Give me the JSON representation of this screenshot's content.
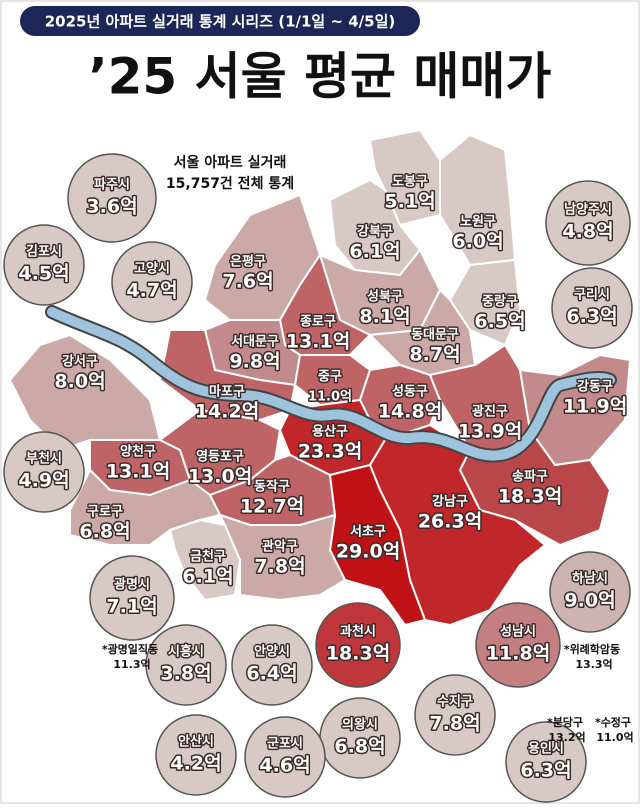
{
  "header": {
    "series": "2025년 아파트 실거래 통계 시리즈 (1/1일 ~ 4/5일)",
    "title": "’25 서울 평균 매매가",
    "subtitle_lines": [
      "서울 아파트 실거래",
      "15,757건 전체 통계"
    ]
  },
  "seoul_districts": [
    {
      "name": "도봉구",
      "price": "5.1억"
    },
    {
      "name": "노원구",
      "price": "6.0억"
    },
    {
      "name": "강북구",
      "price": "6.1억"
    },
    {
      "name": "은평구",
      "price": "7.6억"
    },
    {
      "name": "성북구",
      "price": "8.1억"
    },
    {
      "name": "중랑구",
      "price": "6.5억"
    },
    {
      "name": "종로구",
      "price": "13.1억"
    },
    {
      "name": "서대문구",
      "price": "9.8억"
    },
    {
      "name": "동대문구",
      "price": "8.7억"
    },
    {
      "name": "강서구",
      "price": "8.0억"
    },
    {
      "name": "마포구",
      "price": "14.2억"
    },
    {
      "name": "중구",
      "price": "11.0억"
    },
    {
      "name": "성동구",
      "price": "14.8억"
    },
    {
      "name": "광진구",
      "price": "13.9억"
    },
    {
      "name": "강동구",
      "price": "11.9억"
    },
    {
      "name": "용산구",
      "price": "23.3억"
    },
    {
      "name": "양천구",
      "price": "13.1억"
    },
    {
      "name": "영등포구",
      "price": "13.0억"
    },
    {
      "name": "동작구",
      "price": "12.7억"
    },
    {
      "name": "송파구",
      "price": "18.3억"
    },
    {
      "name": "강남구",
      "price": "26.3억"
    },
    {
      "name": "서초구",
      "price": "29.0억"
    },
    {
      "name": "구로구",
      "price": "6.8억"
    },
    {
      "name": "금천구",
      "price": "6.1억"
    },
    {
      "name": "관악구",
      "price": "7.8억"
    }
  ],
  "satellite_cities": [
    {
      "name": "파주시",
      "price": "3.6억"
    },
    {
      "name": "김포시",
      "price": "4.5억"
    },
    {
      "name": "고양시",
      "price": "4.7억"
    },
    {
      "name": "남양주시",
      "price": "4.8억"
    },
    {
      "name": "구리시",
      "price": "6.3억"
    },
    {
      "name": "부천시",
      "price": "4.9억"
    },
    {
      "name": "광명시",
      "price": "7.1억"
    },
    {
      "name": "하남시",
      "price": "9.0억"
    },
    {
      "name": "과천시",
      "price": "18.3억"
    },
    {
      "name": "성남시",
      "price": "11.8억"
    },
    {
      "name": "시흥시",
      "price": "3.8억"
    },
    {
      "name": "안양시",
      "price": "6.4억"
    },
    {
      "name": "의왕시",
      "price": "6.8억"
    },
    {
      "name": "수지구",
      "price": "7.8억"
    },
    {
      "name": "안산시",
      "price": "4.2억"
    },
    {
      "name": "군포시",
      "price": "4.6억"
    },
    {
      "name": "용인시",
      "price": "6.3억"
    }
  ],
  "notes": [
    {
      "name": "*광명일직동",
      "price": "11.3억"
    },
    {
      "name": "*위례학암동",
      "price": "13.3억"
    },
    {
      "name": "*분당구",
      "price": "13.2억"
    },
    {
      "name": "*수정구",
      "price": "11.0억"
    }
  ]
}
